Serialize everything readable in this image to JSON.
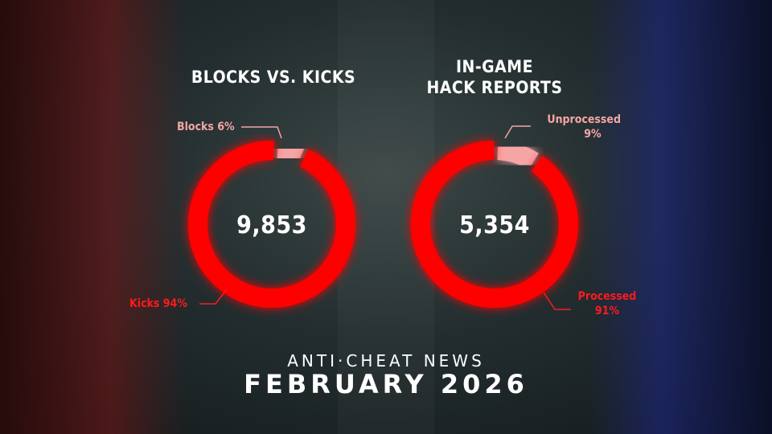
{
  "chart_data": [
    {
      "type": "pie",
      "title": "BLOCKS VS. KICKS",
      "total": "9,853",
      "slices": [
        {
          "name": "Blocks",
          "value": 6,
          "label": "Blocks 6%",
          "color": "#f6a5a5"
        },
        {
          "name": "Kicks",
          "value": 94,
          "label": "Kicks 94%",
          "color": "#ff0000"
        }
      ]
    },
    {
      "type": "pie",
      "title": "IN-GAME HACK REPORTS",
      "title_lines": [
        "IN-GAME",
        "HACK REPORTS"
      ],
      "total": "5,354",
      "slices": [
        {
          "name": "Unprocessed",
          "value": 9,
          "label_lines": [
            "Unprocessed",
            "9%"
          ],
          "color": "#f6a5a5"
        },
        {
          "name": "Processed",
          "value": 91,
          "label_lines": [
            "Processed",
            "91%"
          ],
          "color": "#ff0000"
        }
      ]
    }
  ],
  "footer": {
    "line1": "ANTI·CHEAT NEWS",
    "line2": "FEBRUARY 2026"
  }
}
